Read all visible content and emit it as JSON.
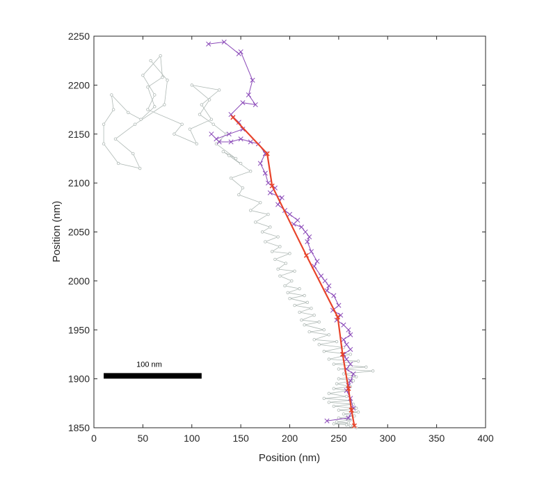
{
  "chart_data": {
    "type": "line",
    "xlabel": "Position (nm)",
    "ylabel": "Position (nm)",
    "xlim": [
      0,
      400
    ],
    "ylim": [
      1850,
      2250
    ],
    "xticks": [
      0,
      50,
      100,
      150,
      200,
      250,
      300,
      350,
      400
    ],
    "yticks": [
      1850,
      1900,
      1950,
      2000,
      2050,
      2100,
      2150,
      2200,
      2250
    ],
    "grid": false,
    "colors": {
      "raw": "#aeb8b4",
      "smoothed": "#8a48b8",
      "mean": "#e8432a",
      "scalebar": "#000000"
    },
    "scale_bar": {
      "label": "100 nm",
      "length": 100,
      "x_start": 10,
      "y": 1903
    },
    "series": [
      {
        "style": "raw-trace",
        "x": [
          58,
          75,
          72,
          42,
          22,
          40,
          47,
          25,
          10,
          10,
          20,
          18,
          35,
          48,
          62,
          55,
          70,
          68,
          50,
          62,
          55,
          90,
          82,
          105,
          98,
          120,
          110,
          128,
          100,
          118,
          108,
          122,
          135,
          125,
          145,
          132,
          150,
          138,
          160,
          140,
          152,
          148,
          170,
          160,
          178,
          165,
          180,
          172,
          188,
          175,
          190,
          182,
          200,
          185,
          196,
          188,
          205,
          190,
          202,
          195,
          210,
          198,
          215,
          200,
          218,
          205,
          222,
          210,
          225,
          212,
          230,
          215,
          235,
          220,
          240,
          225,
          248,
          230,
          255,
          235,
          262,
          240,
          270,
          245,
          278,
          250,
          285,
          255,
          268,
          250,
          265,
          248,
          262,
          245,
          260,
          240,
          258,
          235,
          262,
          240,
          265,
          245,
          268,
          250,
          270,
          255,
          266,
          250,
          262,
          248,
          260,
          245,
          258,
          262,
          265,
          268
        ],
        "y": [
          2225,
          2205,
          2180,
          2160,
          2145,
          2130,
          2115,
          2120,
          2140,
          2160,
          2175,
          2190,
          2172,
          2165,
          2178,
          2198,
          2208,
          2230,
          2210,
          2190,
          2175,
          2160,
          2150,
          2140,
          2155,
          2165,
          2180,
          2195,
          2200,
          2185,
          2170,
          2160,
          2150,
          2140,
          2125,
          2132,
          2120,
          2128,
          2112,
          2105,
          2095,
          2088,
          2080,
          2072,
          2068,
          2060,
          2055,
          2050,
          2045,
          2040,
          2035,
          2030,
          2028,
          2022,
          2018,
          2012,
          2010,
          2005,
          2000,
          1995,
          1992,
          1988,
          1985,
          1982,
          1978,
          1975,
          1972,
          1968,
          1965,
          1960,
          1958,
          1955,
          1950,
          1948,
          1945,
          1940,
          1938,
          1935,
          1932,
          1928,
          1925,
          1920,
          1918,
          1915,
          1912,
          1910,
          1908,
          1905,
          1902,
          1900,
          1898,
          1895,
          1892,
          1890,
          1888,
          1885,
          1882,
          1880,
          1878,
          1876,
          1874,
          1872,
          1870,
          1868,
          1866,
          1864,
          1862,
          1860,
          1858,
          1856,
          1855,
          1854,
          1853,
          1852,
          1851,
          1850
        ]
      },
      {
        "style": "smoothed-trace",
        "x": [
          117,
          133,
          148,
          150,
          162,
          158,
          165,
          152,
          140,
          148,
          152,
          138,
          125,
          120,
          128,
          140,
          150,
          160,
          168,
          175,
          170,
          175,
          178,
          185,
          180,
          192,
          188,
          195,
          200,
          208,
          204,
          212,
          216,
          220,
          218,
          222,
          228,
          225,
          232,
          236,
          240,
          238,
          245,
          250,
          244,
          252,
          248,
          255,
          260,
          262,
          255,
          258,
          262,
          255,
          258,
          262,
          258,
          265,
          262,
          260,
          258,
          262,
          265,
          260,
          238
        ],
        "y": [
          2242,
          2244,
          2232,
          2234,
          2205,
          2190,
          2180,
          2182,
          2170,
          2162,
          2155,
          2150,
          2145,
          2150,
          2142,
          2142,
          2145,
          2142,
          2140,
          2130,
          2120,
          2110,
          2100,
          2095,
          2090,
          2085,
          2078,
          2072,
          2068,
          2062,
          2058,
          2055,
          2050,
          2045,
          2040,
          2030,
          2020,
          2015,
          2005,
          2000,
          1995,
          1990,
          1985,
          1975,
          1970,
          1965,
          1960,
          1955,
          1950,
          1945,
          1940,
          1935,
          1930,
          1925,
          1920,
          1915,
          1910,
          1905,
          1898,
          1893,
          1888,
          1880,
          1870,
          1860,
          1857
        ]
      },
      {
        "style": "mean-trace",
        "x": [
          142,
          177,
          182,
          217,
          249,
          254,
          260,
          263,
          266
        ],
        "y": [
          2167,
          2130,
          2097,
          2026,
          1963,
          1925,
          1890,
          1868,
          1852
        ]
      }
    ]
  }
}
